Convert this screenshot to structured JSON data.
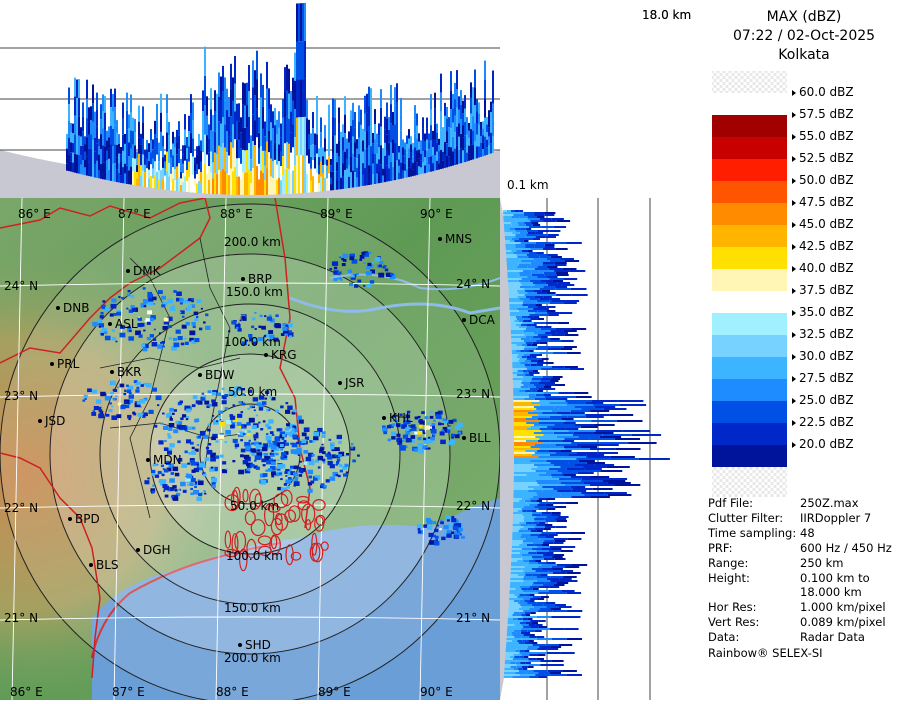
{
  "title": {
    "product": "MAX (dBZ)",
    "datetime": "07:22 / 02-Oct-2025",
    "location": "Kolkata"
  },
  "heights": {
    "top": "18.0 km",
    "bottom": "0.1 km"
  },
  "color_scale": [
    {
      "label": "60.0 dBZ",
      "color": ""
    },
    {
      "label": "57.5 dBZ",
      "color": "#a00000"
    },
    {
      "label": "55.0 dBZ",
      "color": "#c80000"
    },
    {
      "label": "52.5 dBZ",
      "color": "#ff1e00"
    },
    {
      "label": "50.0 dBZ",
      "color": "#ff5500"
    },
    {
      "label": "47.5 dBZ",
      "color": "#ff8c00"
    },
    {
      "label": "45.0 dBZ",
      "color": "#ffb400"
    },
    {
      "label": "42.5 dBZ",
      "color": "#ffe000"
    },
    {
      "label": "40.0 dBZ",
      "color": "#fff5b4"
    },
    {
      "label": "37.5 dBZ",
      "color": "#ffffff"
    },
    {
      "label": "35.0 dBZ",
      "color": "#a0f0ff"
    },
    {
      "label": "32.5 dBZ",
      "color": "#78d2ff"
    },
    {
      "label": "30.0 dBZ",
      "color": "#3cb4ff"
    },
    {
      "label": "27.5 dBZ",
      "color": "#1e8cff"
    },
    {
      "label": "25.0 dBZ",
      "color": "#0050e6"
    },
    {
      "label": "22.5 dBZ",
      "color": "#0028c8"
    },
    {
      "label": "20.0 dBZ",
      "color": "#00149b"
    }
  ],
  "info": [
    {
      "key": "Pdf File:",
      "value": "250Z.max"
    },
    {
      "key": "Clutter Filter:",
      "value": "IIRDoppler 7"
    },
    {
      "key": "Time sampling:",
      "value": "48"
    },
    {
      "key": "PRF:",
      "value": "600 Hz / 450 Hz"
    },
    {
      "key": "Range:",
      "value": "250 km"
    },
    {
      "key": "Height:",
      "value": "0.100 km to\n18.000 km"
    },
    {
      "key": "Hor Res:",
      "value": "1.000 km/pixel"
    },
    {
      "key": "Vert Res:",
      "value": "0.089 km/pixel"
    },
    {
      "key": "Data:",
      "value": "Radar Data"
    }
  ],
  "footer": "Rainbow® SELEX-SI",
  "map": {
    "lon_top": [
      "86° E",
      "87° E",
      "88° E",
      "89° E",
      "90° E"
    ],
    "lon_bottom": [
      "86° E",
      "87° E",
      "88° E",
      "89° E",
      "90° E"
    ],
    "lat_left": [
      "24° N",
      "23° N",
      "22° N",
      "21° N"
    ],
    "lat_right": [
      "24° N",
      "23° N",
      "22° N",
      "21° N"
    ],
    "rings_upper": [
      "200.0 km",
      "150.0 km",
      "100.0 km",
      "50.0 km"
    ],
    "rings_lower": [
      "50.0 km",
      "100.0 km",
      "150.0 km",
      "200.0 km"
    ],
    "cities": [
      {
        "code": "MNS"
      },
      {
        "code": "DMK"
      },
      {
        "code": "BRP"
      },
      {
        "code": "DNB"
      },
      {
        "code": "ASL"
      },
      {
        "code": "DCA"
      },
      {
        "code": "KRG"
      },
      {
        "code": "PRL"
      },
      {
        "code": "BDW"
      },
      {
        "code": "JSR"
      },
      {
        "code": "BKR"
      },
      {
        "code": "JSD"
      },
      {
        "code": "KHL"
      },
      {
        "code": "BLL"
      },
      {
        "code": "MDN"
      },
      {
        "code": "BPD"
      },
      {
        "code": "DGH"
      },
      {
        "code": "BLS"
      },
      {
        "code": "SHD"
      }
    ]
  }
}
